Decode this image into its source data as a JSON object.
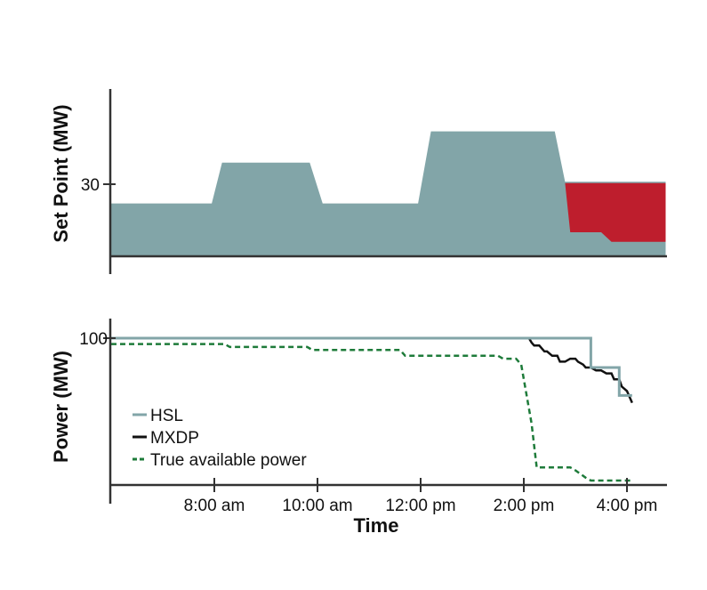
{
  "colors": {
    "hsl": "#82a5a8",
    "mxdp": "#111111",
    "available": "#1e7b3a",
    "curtailed": "#be1e2d",
    "axis": "#333333"
  },
  "chart_data": [
    {
      "type": "area",
      "title": "",
      "xlabel": "",
      "ylabel": "Set Point (MW)",
      "xlim": [
        6.0,
        16.8
      ],
      "ylim": [
        -2,
        50
      ],
      "ytick_values": [
        30
      ],
      "ytick_labels": [
        "30"
      ],
      "series": [
        {
          "name": "",
          "fill": "#82a5a8",
          "x": [
            6.0,
            7.95,
            8.15,
            9.85,
            10.1,
            11.95,
            12.2,
            14.6,
            14.8,
            16.75,
            16.75
          ],
          "y": [
            22,
            22,
            39,
            39,
            22,
            22,
            52,
            52,
            31,
            31,
            0
          ]
        },
        {
          "name": "",
          "fill": "#be1e2d",
          "x": [
            14.8,
            16.75,
            16.75,
            15.7,
            15.5,
            14.9
          ],
          "y": [
            30.5,
            30.5,
            6,
            6,
            10,
            10
          ]
        }
      ]
    },
    {
      "type": "line",
      "title": "",
      "xlabel": "Time",
      "ylabel": "Power (MW)",
      "xlim": [
        6.0,
        16.8
      ],
      "ylim": [
        0,
        100
      ],
      "ytick_values": [
        100
      ],
      "ytick_labels": [
        "100"
      ],
      "xtick_values": [
        8,
        10,
        12,
        14,
        16
      ],
      "xtick_labels": [
        "8:00 am",
        "10:00 am",
        "12:00 pm",
        "2:00 pm",
        "4:00 pm"
      ],
      "legend": {
        "position": "lower-left",
        "entries": [
          "HSL",
          "MXDP",
          "True available power"
        ]
      },
      "series": [
        {
          "name": "HSL",
          "color": "#82a5a8",
          "style": "solid",
          "x": [
            6.0,
            15.3,
            15.3,
            15.85,
            15.85,
            16.1
          ],
          "y": [
            100,
            100,
            80,
            80,
            61,
            61
          ]
        },
        {
          "name": "MXDP",
          "color": "#111111",
          "style": "solid",
          "x": [
            6.0,
            14.1,
            14.15,
            14.2,
            14.3,
            14.4,
            14.45,
            14.55,
            14.65,
            14.7,
            14.8,
            14.9,
            15.0,
            15.05,
            15.15,
            15.2,
            15.3,
            15.4,
            15.5,
            15.6,
            15.7,
            15.75,
            15.85,
            15.9,
            16.0,
            16.05,
            16.1
          ],
          "y": [
            100,
            100,
            97,
            95,
            95,
            91,
            91,
            88,
            88,
            84,
            84,
            86,
            86,
            84,
            82,
            80,
            80,
            78,
            78,
            76,
            76,
            72,
            72,
            67,
            64,
            60,
            56
          ]
        },
        {
          "name": "True available power",
          "color": "#1e7b3a",
          "style": "dashed",
          "x": [
            6.0,
            8.2,
            8.3,
            9.8,
            9.9,
            11.6,
            11.7,
            13.5,
            13.6,
            13.85,
            13.95,
            14.15,
            14.25,
            14.9,
            15.0,
            15.2,
            15.3,
            16.1
          ],
          "y": [
            96,
            96,
            94,
            94,
            92,
            92,
            88,
            88,
            86,
            86,
            82,
            42,
            12,
            12,
            10,
            5,
            3,
            3
          ]
        }
      ]
    }
  ]
}
